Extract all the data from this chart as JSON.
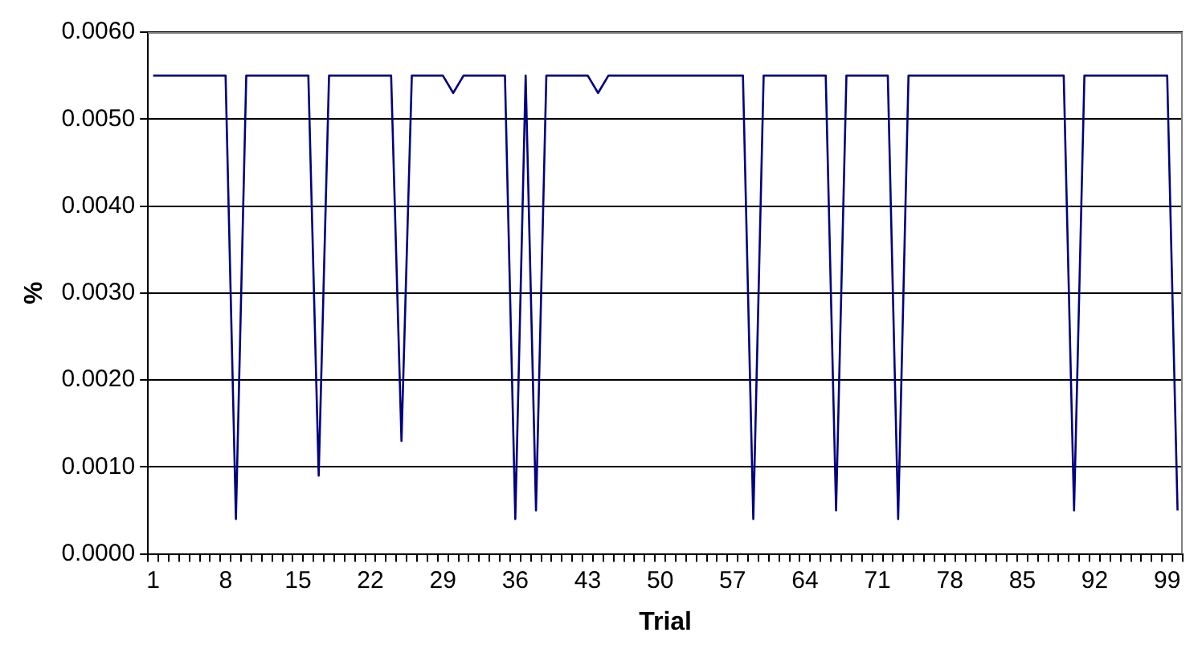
{
  "chart_data": {
    "type": "line",
    "xlabel": "Trial",
    "ylabel": "%",
    "categories": [
      "1",
      null,
      null,
      null,
      null,
      null,
      null,
      "8",
      null,
      null,
      null,
      null,
      null,
      null,
      "15",
      null,
      null,
      null,
      null,
      null,
      null,
      "22",
      null,
      null,
      null,
      null,
      null,
      null,
      "29",
      null,
      null,
      null,
      null,
      null,
      null,
      "36",
      null,
      null,
      null,
      null,
      null,
      null,
      "43",
      null,
      null,
      null,
      null,
      null,
      null,
      "50",
      null,
      null,
      null,
      null,
      null,
      null,
      "57",
      null,
      null,
      null,
      null,
      null,
      null,
      "64",
      null,
      null,
      null,
      null,
      null,
      null,
      "71",
      null,
      null,
      null,
      null,
      null,
      null,
      "78",
      null,
      null,
      null,
      null,
      null,
      null,
      "85",
      null,
      null,
      null,
      null,
      null,
      null,
      "92",
      null,
      null,
      null,
      null,
      null,
      null,
      "99",
      null
    ],
    "series": [
      {
        "color": "#000080",
        "values": [
          0.0055,
          0.0055,
          0.0055,
          0.0055,
          0.0055,
          0.0055,
          0.0055,
          0.0055,
          0.0004,
          0.0055,
          0.0055,
          0.0055,
          0.0055,
          0.0055,
          0.0055,
          0.0055,
          0.0009,
          0.0055,
          0.0055,
          0.0055,
          0.0055,
          0.0055,
          0.0055,
          0.0055,
          0.0013,
          0.0055,
          0.0055,
          0.0055,
          0.0055,
          0.0053,
          0.0055,
          0.0055,
          0.0055,
          0.0055,
          0.0055,
          0.0004,
          0.0055,
          0.0005,
          0.0055,
          0.0055,
          0.0055,
          0.0055,
          0.0055,
          0.0053,
          0.0055,
          0.0055,
          0.0055,
          0.0055,
          0.0055,
          0.0055,
          0.0055,
          0.0055,
          0.0055,
          0.0055,
          0.0055,
          0.0055,
          0.0055,
          0.0055,
          0.0004,
          0.0055,
          0.0055,
          0.0055,
          0.0055,
          0.0055,
          0.0055,
          0.0055,
          0.0005,
          0.0055,
          0.0055,
          0.0055,
          0.0055,
          0.0055,
          0.0004,
          0.0055,
          0.0055,
          0.0055,
          0.0055,
          0.0055,
          0.0055,
          0.0055,
          0.0055,
          0.0055,
          0.0055,
          0.0055,
          0.0055,
          0.0055,
          0.0055,
          0.0055,
          0.0055,
          0.0005,
          0.0055,
          0.0055,
          0.0055,
          0.0055,
          0.0055,
          0.0055,
          0.0055,
          0.0055,
          0.0055,
          0.0005
        ]
      }
    ],
    "ylim": [
      0,
      0.006
    ],
    "yticks": [
      {
        "value": 0,
        "label": "0.0000"
      },
      {
        "value": 0.001,
        "label": "0.0010"
      },
      {
        "value": 0.002,
        "label": "0.0020"
      },
      {
        "value": 0.003,
        "label": "0.0030"
      },
      {
        "value": 0.004,
        "label": "0.0040"
      },
      {
        "value": 0.005,
        "label": "0.0050"
      },
      {
        "value": 0.006,
        "label": "0.0060"
      }
    ],
    "grid": "y",
    "legend": false,
    "marker": "none",
    "line_style": "solid"
  }
}
